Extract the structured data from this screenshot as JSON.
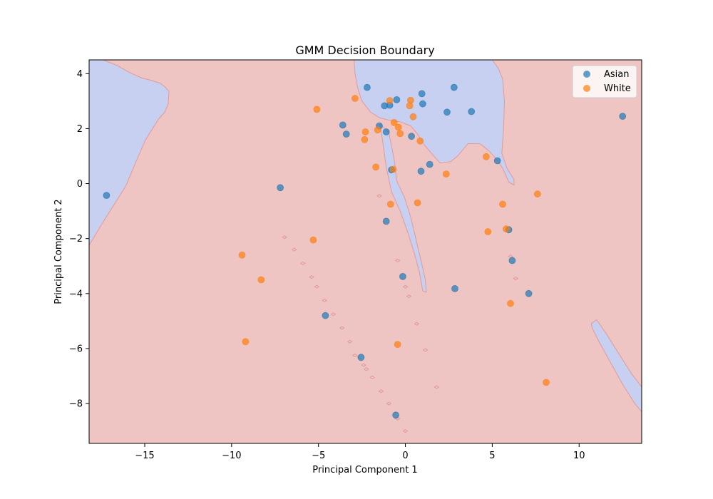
{
  "chart_data": {
    "type": "scatter",
    "title": "GMM Decision Boundary",
    "xlabel": "Principal Component 1",
    "ylabel": "Principal Component 2",
    "xlim": [
      -18.2,
      13.6
    ],
    "ylim": [
      -9.45,
      4.5
    ],
    "xticks": [
      -15,
      -10,
      -5,
      0,
      5,
      10
    ],
    "yticks": [
      -8,
      -6,
      -4,
      -2,
      0,
      2,
      4
    ],
    "xtick_labels": [
      "−15",
      "−10",
      "−5",
      "0",
      "5",
      "10"
    ],
    "ytick_labels": [
      "−8",
      "−6",
      "−4",
      "−2",
      "0",
      "2",
      "4"
    ],
    "grid": false,
    "legend_position": "top-right",
    "background": {
      "description_regions": "decision regions",
      "colors": {
        "region_a": "#c8d0f2",
        "region_b": "#efc5c3",
        "boundary": "#e09a98"
      }
    },
    "series": [
      {
        "name": "Asian",
        "color": "#1f77b4",
        "points": [
          [
            -17.2,
            -0.43
          ],
          [
            -7.2,
            -0.15
          ],
          [
            -3.6,
            2.13
          ],
          [
            -3.4,
            1.8
          ],
          [
            -2.2,
            3.5
          ],
          [
            -1.5,
            2.1
          ],
          [
            -1.2,
            2.83
          ],
          [
            -1.1,
            1.88
          ],
          [
            -0.9,
            2.85
          ],
          [
            -0.8,
            0.5
          ],
          [
            -1.1,
            -1.37
          ],
          [
            -0.5,
            3.05
          ],
          [
            0.35,
            1.72
          ],
          [
            0.9,
            0.45
          ],
          [
            0.95,
            3.27
          ],
          [
            1.0,
            2.9
          ],
          [
            1.4,
            0.7
          ],
          [
            2.4,
            2.6
          ],
          [
            2.8,
            3.5
          ],
          [
            3.8,
            2.62
          ],
          [
            5.3,
            0.83
          ],
          [
            5.95,
            -1.68
          ],
          [
            6.15,
            -2.8
          ],
          [
            7.1,
            -4.0
          ],
          [
            12.5,
            2.45
          ],
          [
            -0.15,
            -3.38
          ],
          [
            2.85,
            -3.82
          ],
          [
            -4.6,
            -4.8
          ],
          [
            -2.55,
            -6.32
          ],
          [
            -0.55,
            -8.42
          ]
        ]
      },
      {
        "name": "White",
        "color": "#ff7f0e",
        "points": [
          [
            -5.1,
            2.7
          ],
          [
            -2.9,
            3.1
          ],
          [
            -2.3,
            1.88
          ],
          [
            -2.35,
            1.6
          ],
          [
            -1.7,
            0.6
          ],
          [
            -1.6,
            1.95
          ],
          [
            -0.9,
            3.02
          ],
          [
            -0.7,
            0.52
          ],
          [
            -0.65,
            2.22
          ],
          [
            -0.4,
            2.05
          ],
          [
            -0.3,
            1.82
          ],
          [
            0.25,
            2.83
          ],
          [
            0.3,
            3.03
          ],
          [
            0.45,
            2.43
          ],
          [
            0.85,
            1.55
          ],
          [
            2.35,
            0.35
          ],
          [
            0.7,
            -0.7
          ],
          [
            -0.85,
            -0.75
          ],
          [
            4.65,
            0.98
          ],
          [
            4.75,
            -1.75
          ],
          [
            5.6,
            -0.75
          ],
          [
            5.8,
            -1.65
          ],
          [
            6.05,
            -4.36
          ],
          [
            7.6,
            -0.38
          ],
          [
            8.1,
            -7.23
          ],
          [
            -5.3,
            -2.05
          ],
          [
            -9.4,
            -2.6
          ],
          [
            -8.3,
            -3.5
          ],
          [
            -9.2,
            -5.75
          ],
          [
            -0.45,
            -5.85
          ]
        ]
      }
    ]
  }
}
